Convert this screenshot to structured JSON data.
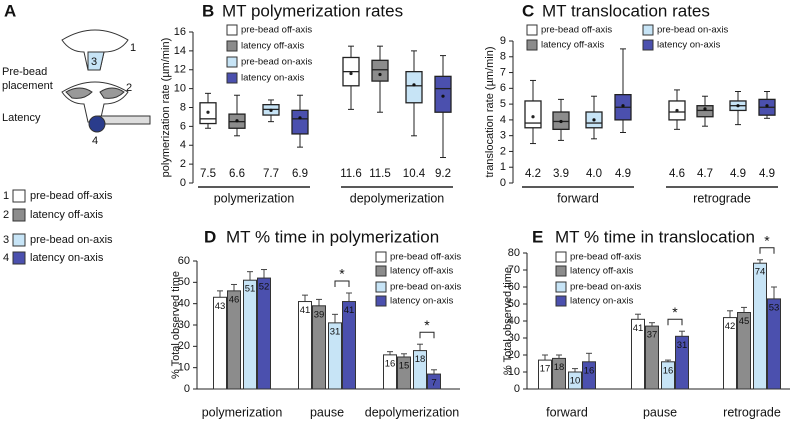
{
  "panel_a": {
    "label": "A",
    "placement_lines": [
      "Pre-bead",
      "placement"
    ],
    "latency": "Latency",
    "diagram_numbers": [
      "1",
      "3",
      "2",
      "4"
    ],
    "legend": [
      {
        "number": "1",
        "name": "pre-bead off-axis",
        "color": "#ffffff"
      },
      {
        "number": "2",
        "name": "latency off-axis",
        "color": "#8c8c8c"
      },
      {
        "number": "3",
        "name": "pre-bead on-axis",
        "color": "#c7e4f6"
      },
      {
        "number": "4",
        "name": "latency on-axis",
        "color": "#4b50ae"
      }
    ]
  },
  "chart_data": [
    {
      "type": "box",
      "panel_label": "B",
      "title": "MT polymerization rates",
      "ylabel": "polymerization rate (µm/min)",
      "categories": [
        "polymerization",
        "depolymerization"
      ],
      "ylim": [
        0,
        16
      ],
      "yticks": [
        0,
        2,
        4,
        6,
        8,
        10,
        12,
        14,
        16
      ],
      "series": [
        {
          "name": "pre-bead off-axis",
          "color": "#ffffff",
          "values": [
            7.5,
            11.6
          ],
          "whisker_low": [
            5.8,
            7.8
          ],
          "q1": [
            6.3,
            10.3
          ],
          "median": [
            6.8,
            11.8
          ],
          "q3": [
            8.5,
            13.3
          ],
          "whisker_high": [
            9.5,
            14.5
          ]
        },
        {
          "name": "latency off-axis",
          "color": "#8c8c8c",
          "values": [
            6.6,
            11.5
          ],
          "whisker_low": [
            5,
            7.5
          ],
          "q1": [
            5.8,
            10.8
          ],
          "median": [
            6.5,
            12
          ],
          "q3": [
            7.3,
            13
          ],
          "whisker_high": [
            9.3,
            14.5
          ]
        },
        {
          "name": "pre-bead on-axis",
          "color": "#c7e4f6",
          "values": [
            7.7,
            10.4
          ],
          "whisker_low": [
            6.5,
            5
          ],
          "q1": [
            7.2,
            8.5
          ],
          "median": [
            7.8,
            10.3
          ],
          "q3": [
            8.3,
            11.8
          ],
          "whisker_high": [
            8.8,
            14
          ]
        },
        {
          "name": "latency on-axis",
          "color": "#4b50ae",
          "values": [
            6.9,
            9.2
          ],
          "whisker_low": [
            3.8,
            2.7
          ],
          "q1": [
            5.2,
            7.5
          ],
          "median": [
            6.8,
            10
          ],
          "q3": [
            7.7,
            11.3
          ],
          "whisker_high": [
            9.3,
            13.5
          ]
        }
      ]
    },
    {
      "type": "box",
      "panel_label": "C",
      "title": "MT translocation rates",
      "ylabel": "translocation rate (µm/min)",
      "categories": [
        "forward",
        "retrograde"
      ],
      "ylim": [
        0,
        9
      ],
      "yticks": [
        0,
        1,
        2,
        3,
        4,
        5,
        6,
        7,
        8,
        9
      ],
      "series": [
        {
          "name": "pre-bead off-axis",
          "color": "#ffffff",
          "values": [
            4.2,
            4.6
          ],
          "whisker_low": [
            2.5,
            3.4
          ],
          "q1": [
            3.5,
            4
          ],
          "median": [
            3.8,
            4.5
          ],
          "q3": [
            5.2,
            5.2
          ],
          "whisker_high": [
            6.5,
            5.9
          ]
        },
        {
          "name": "latency off-axis",
          "color": "#8c8c8c",
          "values": [
            3.9,
            4.7
          ],
          "whisker_low": [
            2.7,
            3.6
          ],
          "q1": [
            3.4,
            4.2
          ],
          "median": [
            3.9,
            4.6
          ],
          "q3": [
            4.5,
            4.9
          ],
          "whisker_high": [
            5.3,
            5.5
          ]
        },
        {
          "name": "pre-bead on-axis",
          "color": "#c7e4f6",
          "values": [
            4.0,
            4.9
          ],
          "value_labels": [
            "4.0",
            "4.9"
          ],
          "whisker_low": [
            2.8,
            3.7
          ],
          "q1": [
            3.5,
            4.6
          ],
          "median": [
            3.8,
            4.9
          ],
          "q3": [
            4.5,
            5.2
          ],
          "whisker_high": [
            5.5,
            5.8
          ]
        },
        {
          "name": "latency on-axis",
          "color": "#4b50ae",
          "values": [
            4.9,
            4.9
          ],
          "whisker_low": [
            3.2,
            4.1
          ],
          "q1": [
            4,
            4.3
          ],
          "median": [
            4.8,
            4.8
          ],
          "q3": [
            5.6,
            5.3
          ],
          "whisker_high": [
            8.5,
            5.8
          ]
        }
      ]
    },
    {
      "type": "bar",
      "panel_label": "D",
      "title": "MT % time in polymerization",
      "ylabel": "% Total observed time",
      "categories": [
        "polymerization",
        "pause",
        "depolymerization"
      ],
      "ylim": [
        0,
        60
      ],
      "yticks": [
        0,
        10,
        20,
        30,
        40,
        50,
        60
      ],
      "series": [
        {
          "name": "pre-bead off-axis",
          "color": "#ffffff",
          "values": [
            43,
            41,
            16
          ],
          "errors": [
            3,
            3,
            1.5
          ]
        },
        {
          "name": "latency off-axis",
          "color": "#8c8c8c",
          "values": [
            46,
            39,
            15
          ],
          "errors": [
            3,
            3,
            1.5
          ]
        },
        {
          "name": "pre-bead on-axis",
          "color": "#c7e4f6",
          "values": [
            51,
            31,
            18
          ],
          "errors": [
            4,
            4,
            3
          ]
        },
        {
          "name": "latency on-axis",
          "color": "#4b50ae",
          "values": [
            52,
            41,
            7
          ],
          "errors": [
            4,
            4,
            2
          ]
        }
      ],
      "significance": [
        {
          "category": 1,
          "series": [
            2,
            3
          ],
          "label": "*"
        },
        {
          "category": 2,
          "series": [
            2,
            3
          ],
          "label": "*"
        }
      ]
    },
    {
      "type": "bar",
      "panel_label": "E",
      "title": "MT % time in translocation",
      "ylabel": "% Total observed time",
      "categories": [
        "forward",
        "pause",
        "retrograde"
      ],
      "ylim": [
        0,
        80
      ],
      "yticks": [
        0,
        10,
        20,
        30,
        40,
        50,
        60,
        70,
        80
      ],
      "series": [
        {
          "name": "pre-bead off-axis",
          "color": "#ffffff",
          "values": [
            17,
            41,
            42
          ],
          "errors": [
            3,
            3,
            4
          ]
        },
        {
          "name": "latency off-axis",
          "color": "#8c8c8c",
          "values": [
            18,
            37,
            45
          ],
          "errors": [
            2,
            2,
            3
          ]
        },
        {
          "name": "pre-bead on-axis",
          "color": "#c7e4f6",
          "values": [
            10,
            16,
            74
          ],
          "errors": [
            2,
            1,
            2
          ]
        },
        {
          "name": "latency on-axis",
          "color": "#4b50ae",
          "values": [
            16,
            31,
            53
          ],
          "errors": [
            5,
            3,
            7
          ]
        }
      ],
      "significance": [
        {
          "category": 1,
          "series": [
            2,
            3
          ],
          "label": "*"
        },
        {
          "category": 2,
          "series": [
            2,
            3
          ],
          "label": "*"
        }
      ]
    }
  ]
}
